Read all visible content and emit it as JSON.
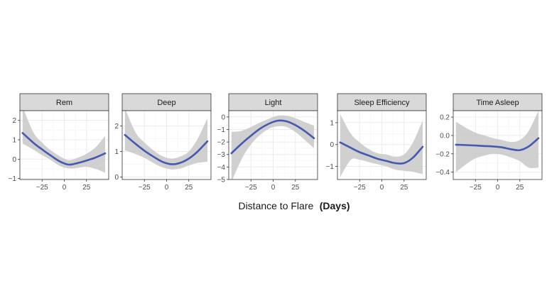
{
  "figure": {
    "xlabel": "Distance to Flare",
    "xlabel_suffix": "(Days)",
    "line_color": "#4459b0",
    "ribbon_color": "#c8c8c8",
    "strip_color": "#d9d9d9",
    "grid_color": "#ebebeb"
  },
  "chart_data": [
    {
      "type": "line",
      "title": "Rem",
      "xlabel": "Distance to Flare (Days)",
      "x_ticks": [
        -25,
        0,
        25
      ],
      "y_ticks": [
        2,
        1,
        0,
        -1
      ],
      "xlim": [
        -50,
        50
      ],
      "ylim": [
        -1.05,
        2.5
      ],
      "series": [
        {
          "x": [
            -47,
            -35,
            -25,
            -15,
            -5,
            5,
            15,
            25,
            35,
            46
          ],
          "y": [
            1.35,
            0.85,
            0.5,
            0.18,
            -0.12,
            -0.28,
            -0.2,
            -0.07,
            0.08,
            0.3
          ],
          "lower": [
            0.8,
            0.5,
            0.2,
            -0.05,
            -0.35,
            -0.48,
            -0.45,
            -0.4,
            -0.5,
            -0.7
          ],
          "upper": [
            2.7,
            1.4,
            0.85,
            0.45,
            0.15,
            -0.05,
            0.07,
            0.28,
            0.6,
            1.2
          ]
        }
      ]
    },
    {
      "type": "line",
      "title": "Deep",
      "xlabel": "Distance to Flare (Days)",
      "x_ticks": [
        -25,
        0,
        25
      ],
      "y_ticks": [
        2,
        1,
        0
      ],
      "xlim": [
        -50,
        50
      ],
      "ylim": [
        -0.1,
        2.6
      ],
      "series": [
        {
          "x": [
            -47,
            -35,
            -25,
            -15,
            -5,
            5,
            15,
            25,
            35,
            46
          ],
          "y": [
            1.65,
            1.3,
            1.03,
            0.8,
            0.6,
            0.5,
            0.55,
            0.72,
            1.0,
            1.4
          ],
          "lower": [
            1.05,
            0.9,
            0.75,
            0.55,
            0.38,
            0.3,
            0.33,
            0.45,
            0.55,
            0.6
          ],
          "upper": [
            2.7,
            1.75,
            1.35,
            1.05,
            0.82,
            0.72,
            0.8,
            1.0,
            1.5,
            2.3
          ]
        }
      ]
    },
    {
      "type": "line",
      "title": "Light",
      "xlabel": "Distance to Flare (Days)",
      "x_ticks": [
        -25,
        0,
        25
      ],
      "y_ticks": [
        0,
        -1,
        -2,
        -3,
        -4,
        -5
      ],
      "xlim": [
        -50,
        50
      ],
      "ylim": [
        -5,
        0.5
      ],
      "series": [
        {
          "x": [
            -47,
            -35,
            -25,
            -15,
            -5,
            5,
            15,
            25,
            35,
            46
          ],
          "y": [
            -2.9,
            -2.1,
            -1.5,
            -0.95,
            -0.55,
            -0.3,
            -0.35,
            -0.65,
            -1.1,
            -1.7
          ],
          "lower": [
            -5.2,
            -3.3,
            -2.2,
            -1.45,
            -0.95,
            -0.75,
            -0.8,
            -1.2,
            -1.8,
            -2.5
          ],
          "upper": [
            -1.2,
            -1.1,
            -0.8,
            -0.45,
            -0.15,
            0.1,
            0.1,
            -0.1,
            -0.4,
            -0.7
          ]
        }
      ]
    },
    {
      "type": "line",
      "title": "Sleep Efficiency",
      "xlabel": "Distance to Flare (Days)",
      "x_ticks": [
        -25,
        0,
        25
      ],
      "y_ticks": [
        1,
        0,
        -1
      ],
      "xlim": [
        -50,
        50
      ],
      "ylim": [
        -1.6,
        1.55
      ],
      "series": [
        {
          "x": [
            -47,
            -35,
            -25,
            -15,
            -5,
            5,
            15,
            25,
            35,
            46
          ],
          "y": [
            0.1,
            -0.15,
            -0.35,
            -0.5,
            -0.65,
            -0.75,
            -0.85,
            -0.85,
            -0.6,
            -0.1
          ],
          "lower": [
            -1.5,
            -0.7,
            -0.7,
            -0.8,
            -0.9,
            -1.0,
            -1.15,
            -1.2,
            -1.25,
            -1.35
          ],
          "upper": [
            1.4,
            0.5,
            0.1,
            -0.2,
            -0.4,
            -0.45,
            -0.55,
            -0.45,
            0.1,
            1.1
          ]
        }
      ]
    },
    {
      "type": "line",
      "title": "Time Asleep",
      "xlabel": "Distance to Flare (Days)",
      "x_ticks": [
        -25,
        0,
        25
      ],
      "y_ticks": [
        0.2,
        0.0,
        -0.2,
        -0.4
      ],
      "y_tick_labels": [
        "0.2",
        "0.0",
        "−0.2",
        "−0.4"
      ],
      "xlim": [
        -50,
        50
      ],
      "ylim": [
        -0.48,
        0.27
      ],
      "series": [
        {
          "x": [
            -47,
            -35,
            -25,
            -15,
            -5,
            5,
            15,
            25,
            35,
            46
          ],
          "y": [
            -0.1,
            -0.105,
            -0.11,
            -0.115,
            -0.12,
            -0.13,
            -0.15,
            -0.16,
            -0.12,
            -0.03
          ],
          "lower": [
            -0.4,
            -0.31,
            -0.25,
            -0.22,
            -0.2,
            -0.21,
            -0.24,
            -0.28,
            -0.35,
            -0.35
          ],
          "upper": [
            0.15,
            0.08,
            0.03,
            0.0,
            -0.03,
            -0.05,
            -0.07,
            -0.05,
            0.05,
            0.27
          ]
        }
      ]
    }
  ]
}
